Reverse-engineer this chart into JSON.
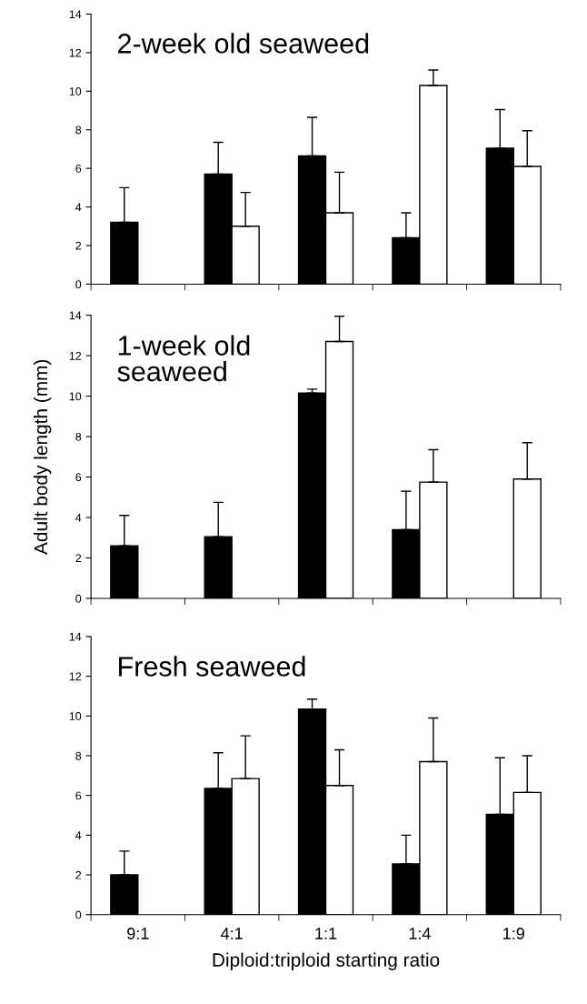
{
  "chart_data": [
    {
      "type": "bar",
      "title": "2-week old seaweed",
      "ylim": [
        0,
        14
      ],
      "yticks": [
        0,
        2,
        4,
        6,
        8,
        10,
        12,
        14
      ],
      "tick_labels": "y",
      "series": [
        {
          "color": "#000000",
          "values": [
            3.2,
            5.7,
            6.65,
            2.4,
            7.05
          ],
          "errors": [
            [
              3.2,
              5.0
            ],
            [
              5.7,
              7.35
            ],
            [
              6.65,
              8.65
            ],
            [
              2.4,
              3.7
            ],
            [
              7.05,
              9.05
            ]
          ]
        },
        {
          "color": "#ffffff",
          "values": [
            null,
            3.0,
            3.7,
            10.3,
            6.1
          ],
          "errors": [
            null,
            [
              3.0,
              4.75
            ],
            [
              3.7,
              5.8
            ],
            [
              10.3,
              11.1
            ],
            [
              6.1,
              7.95
            ]
          ]
        }
      ]
    },
    {
      "type": "bar",
      "title": "1-week old\nseaweed",
      "ylabel": "Adult body length (mm)",
      "ylim": [
        0,
        14
      ],
      "yticks": [
        0,
        2,
        4,
        6,
        8,
        10,
        12,
        14
      ],
      "tick_labels": "y",
      "series": [
        {
          "color": "#000000",
          "values": [
            2.6,
            3.05,
            10.15,
            3.4,
            null
          ],
          "errors": [
            [
              2.6,
              4.1
            ],
            [
              3.05,
              4.75
            ],
            [
              10.15,
              10.35
            ],
            [
              3.4,
              5.3
            ],
            null
          ]
        },
        {
          "color": "#ffffff",
          "values": [
            null,
            null,
            12.7,
            5.75,
            5.9
          ],
          "errors": [
            null,
            null,
            [
              12.7,
              13.95
            ],
            [
              5.75,
              7.35
            ],
            [
              5.9,
              7.7
            ]
          ]
        }
      ]
    },
    {
      "type": "bar",
      "title": "Fresh seaweed",
      "xlabel": "Diploid:triploid starting ratio",
      "categories": [
        "9:1",
        "4:1",
        "1:1",
        "1:4",
        "1:9"
      ],
      "ylim": [
        0,
        14
      ],
      "yticks": [
        0,
        2,
        4,
        6,
        8,
        10,
        12,
        14
      ],
      "series": [
        {
          "color": "#000000",
          "values": [
            2.0,
            6.35,
            10.35,
            2.55,
            5.05
          ],
          "errors": [
            [
              2.0,
              3.2
            ],
            [
              6.35,
              8.15
            ],
            [
              10.35,
              10.85
            ],
            [
              2.55,
              4.0
            ],
            [
              5.05,
              7.9
            ]
          ]
        },
        {
          "color": "#ffffff",
          "values": [
            null,
            6.85,
            6.5,
            7.7,
            6.15
          ],
          "errors": [
            null,
            [
              6.85,
              9.0
            ],
            [
              6.5,
              8.3
            ],
            [
              7.7,
              9.9
            ],
            [
              6.15,
              8.0
            ]
          ]
        }
      ]
    }
  ]
}
